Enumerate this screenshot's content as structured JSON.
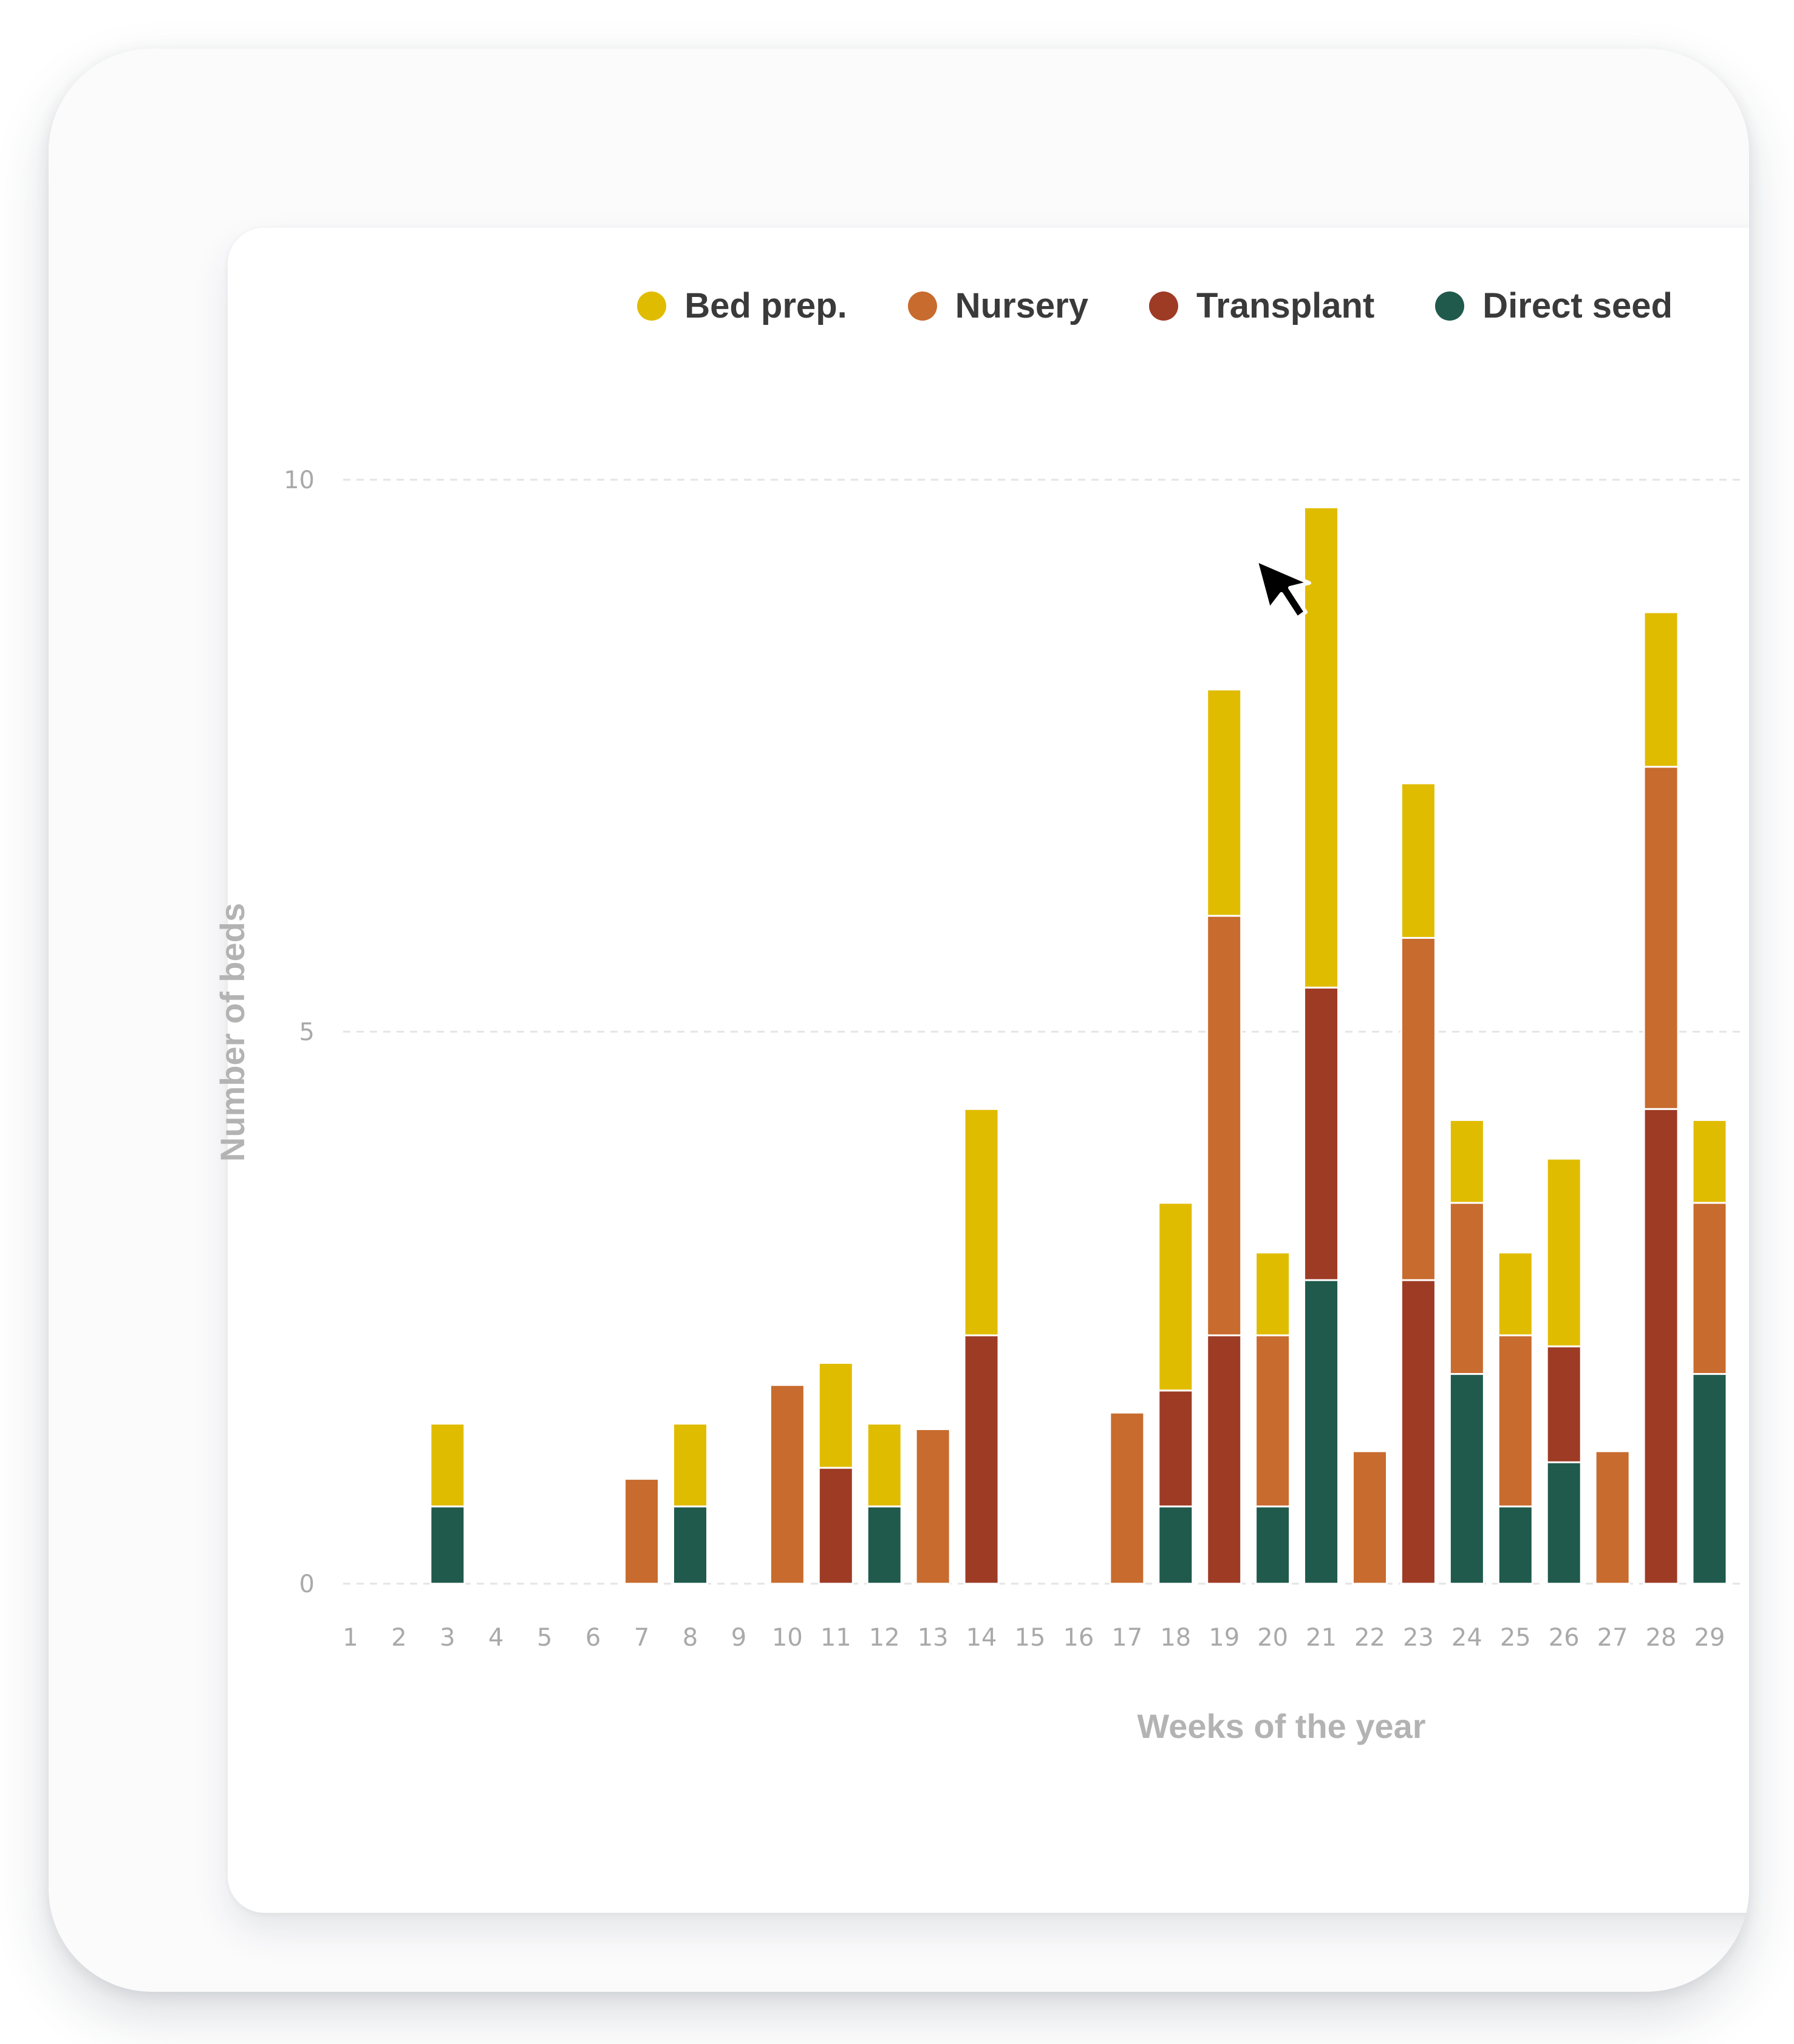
{
  "colors": {
    "bed_prep": "#e0bc00",
    "nursery": "#c86b2e",
    "transplant": "#9e3b25",
    "direct_seed": "#1f5a4c"
  },
  "legend": [
    {
      "label": "Bed prep.",
      "color": "#e0bc00"
    },
    {
      "label": "Nursery",
      "color": "#c86b2e"
    },
    {
      "label": "Transplant",
      "color": "#9e3b25"
    },
    {
      "label": "Direct seed",
      "color": "#1f5a4c"
    }
  ],
  "cursor": {
    "icon": "mouse-pointer-icon"
  },
  "chart_data": {
    "type": "bar",
    "stacked": true,
    "title": "",
    "xlabel": "Weeks of the year",
    "ylabel": "Number of beds",
    "ylim": [
      0,
      10
    ],
    "yticks": [
      0,
      5,
      10
    ],
    "grid": true,
    "legend_position": "top-right",
    "categories": [
      "1",
      "2",
      "3",
      "4",
      "5",
      "6",
      "7",
      "8",
      "9",
      "10",
      "11",
      "12",
      "13",
      "14",
      "15",
      "16",
      "17",
      "18",
      "19",
      "20",
      "21",
      "22",
      "23",
      "24",
      "25",
      "26",
      "27",
      "28",
      "29"
    ],
    "series": [
      {
        "name": "Direct seed",
        "values": [
          0,
          0,
          0.7,
          0,
          0,
          0,
          0,
          0.7,
          0,
          0,
          0,
          0.7,
          0,
          0,
          0,
          0,
          0,
          0.7,
          0,
          0.7,
          2.75,
          0,
          0,
          1.9,
          0.7,
          1.1,
          0,
          0,
          1.9
        ]
      },
      {
        "name": "Transplant",
        "values": [
          0,
          0,
          0,
          0,
          0,
          0,
          0,
          0,
          0,
          0,
          1.05,
          0,
          0,
          2.25,
          0,
          0,
          0,
          1.05,
          2.25,
          0,
          2.65,
          0,
          2.75,
          0,
          0,
          1.05,
          0,
          4.3,
          0
        ]
      },
      {
        "name": "Nursery",
        "values": [
          0,
          0,
          0,
          0,
          0,
          0,
          0.95,
          0,
          0,
          1.8,
          0,
          0,
          1.4,
          0,
          0,
          0,
          1.55,
          0,
          3.8,
          1.55,
          0,
          1.2,
          3.1,
          1.55,
          1.55,
          0,
          1.2,
          3.1,
          1.55
        ]
      },
      {
        "name": "Bed prep.",
        "values": [
          0,
          0,
          0.75,
          0,
          0,
          0,
          0,
          0.75,
          0,
          0,
          0.95,
          0.75,
          0,
          2.05,
          0,
          0,
          0,
          1.7,
          2.05,
          0.75,
          4.35,
          0,
          1.4,
          0.75,
          0.75,
          1.7,
          0,
          1.4,
          0.75
        ]
      }
    ]
  }
}
